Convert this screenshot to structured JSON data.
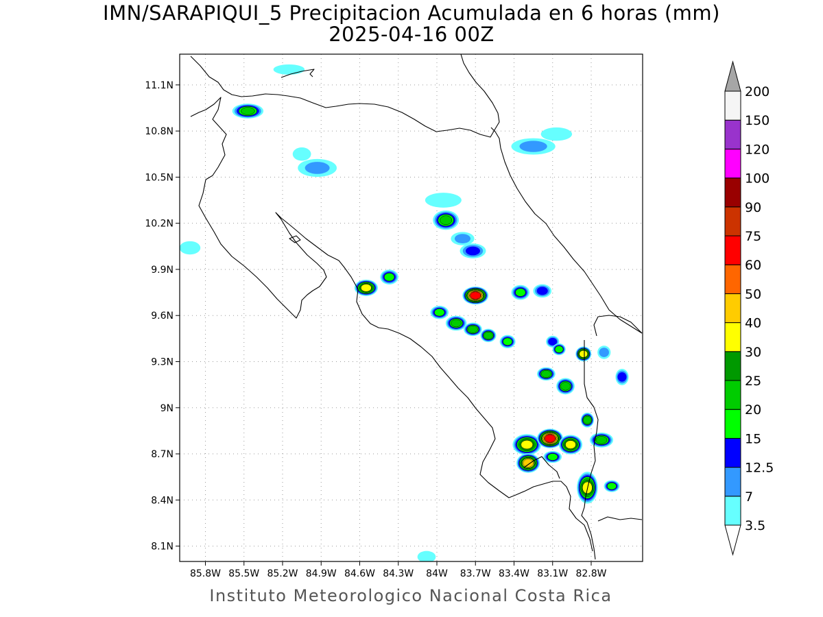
{
  "title": {
    "line1": "IMN/SARAPIQUI_5 Precipitacion Acumulada en 6 horas (mm)",
    "line2": "2025-04-16 00Z"
  },
  "footer": "Instituto Meteorologico Nacional Costa Rica",
  "map": {
    "lon_range": [
      -86.0,
      -82.4
    ],
    "lat_range": [
      8.0,
      11.3
    ],
    "lat_ticks": [
      {
        "value": 8.1,
        "label": "8.1N"
      },
      {
        "value": 8.4,
        "label": "8.4N"
      },
      {
        "value": 8.7,
        "label": "8.7N"
      },
      {
        "value": 9.0,
        "label": "9N"
      },
      {
        "value": 9.3,
        "label": "9.3N"
      },
      {
        "value": 9.6,
        "label": "9.6N"
      },
      {
        "value": 9.9,
        "label": "9.9N"
      },
      {
        "value": 10.2,
        "label": "10.2N"
      },
      {
        "value": 10.5,
        "label": "10.5N"
      },
      {
        "value": 10.8,
        "label": "10.8N"
      },
      {
        "value": 11.1,
        "label": "11.1N"
      }
    ],
    "lon_ticks": [
      {
        "value": -85.8,
        "label": "85.8W"
      },
      {
        "value": -85.5,
        "label": "85.5W"
      },
      {
        "value": -85.2,
        "label": "85.2W"
      },
      {
        "value": -84.9,
        "label": "84.9W"
      },
      {
        "value": -84.6,
        "label": "84.6W"
      },
      {
        "value": -84.3,
        "label": "84.3W"
      },
      {
        "value": -84.0,
        "label": "84W"
      },
      {
        "value": -83.7,
        "label": "83.7W"
      },
      {
        "value": -83.4,
        "label": "83.4W"
      },
      {
        "value": -83.1,
        "label": "83.1W"
      },
      {
        "value": -82.8,
        "label": "82.8W"
      }
    ],
    "grid": true,
    "coast_color": "#000000"
  },
  "legend": {
    "levels": [
      {
        "label": "3.5",
        "color": "#66ffff"
      },
      {
        "label": "7",
        "color": "#3399ff"
      },
      {
        "label": "12.5",
        "color": "#0000ff"
      },
      {
        "label": "15",
        "color": "#00ff00"
      },
      {
        "label": "20",
        "color": "#00cc00"
      },
      {
        "label": "25",
        "color": "#009900"
      },
      {
        "label": "30",
        "color": "#ffff00"
      },
      {
        "label": "40",
        "color": "#ffcc00"
      },
      {
        "label": "50",
        "color": "#ff6600"
      },
      {
        "label": "60",
        "color": "#ff0000"
      },
      {
        "label": "75",
        "color": "#cc3300"
      },
      {
        "label": "90",
        "color": "#990000"
      },
      {
        "label": "100",
        "color": "#ff00ff"
      },
      {
        "label": "120",
        "color": "#9933cc"
      },
      {
        "label": "150",
        "color": "#f5f5f5"
      },
      {
        "label": "200",
        "color": "#a6a6a6"
      }
    ],
    "under_color": "#ffffff",
    "over_color": "#a6a6a6"
  },
  "precip_cells": [
    {
      "lon": -85.47,
      "lat": 10.93,
      "rx": 0.1,
      "ry": 0.035,
      "value": 22
    },
    {
      "lon": -84.93,
      "lat": 10.56,
      "rx": 0.13,
      "ry": 0.045,
      "value": 9
    },
    {
      "lon": -85.05,
      "lat": 10.65,
      "rx": 0.05,
      "ry": 0.03,
      "value": 5
    },
    {
      "lon": -85.92,
      "lat": 10.04,
      "rx": 0.06,
      "ry": 0.03,
      "value": 6
    },
    {
      "lon": -84.55,
      "lat": 9.78,
      "rx": 0.07,
      "ry": 0.04,
      "value": 33
    },
    {
      "lon": -84.37,
      "lat": 9.85,
      "rx": 0.05,
      "ry": 0.035,
      "value": 16
    },
    {
      "lon": -83.98,
      "lat": 9.62,
      "rx": 0.05,
      "ry": 0.03,
      "value": 18
    },
    {
      "lon": -83.85,
      "lat": 9.55,
      "rx": 0.06,
      "ry": 0.035,
      "value": 24
    },
    {
      "lon": -83.72,
      "lat": 9.51,
      "rx": 0.05,
      "ry": 0.03,
      "value": 22
    },
    {
      "lon": -83.6,
      "lat": 9.47,
      "rx": 0.04,
      "ry": 0.03,
      "value": 20
    },
    {
      "lon": -83.45,
      "lat": 9.43,
      "rx": 0.04,
      "ry": 0.03,
      "value": 18
    },
    {
      "lon": -83.7,
      "lat": 9.73,
      "rx": 0.08,
      "ry": 0.045,
      "value": 62
    },
    {
      "lon": -83.35,
      "lat": 9.75,
      "rx": 0.05,
      "ry": 0.035,
      "value": 17
    },
    {
      "lon": -83.18,
      "lat": 9.76,
      "rx": 0.05,
      "ry": 0.03,
      "value": 14
    },
    {
      "lon": -83.93,
      "lat": 10.22,
      "rx": 0.08,
      "ry": 0.05,
      "value": 20
    },
    {
      "lon": -83.95,
      "lat": 10.35,
      "rx": 0.12,
      "ry": 0.035,
      "value": 5
    },
    {
      "lon": -83.72,
      "lat": 10.02,
      "rx": 0.08,
      "ry": 0.035,
      "value": 13
    },
    {
      "lon": -83.8,
      "lat": 10.1,
      "rx": 0.07,
      "ry": 0.03,
      "value": 8
    },
    {
      "lon": -83.25,
      "lat": 10.7,
      "rx": 0.15,
      "ry": 0.04,
      "value": 8
    },
    {
      "lon": -83.07,
      "lat": 10.78,
      "rx": 0.1,
      "ry": 0.03,
      "value": 6
    },
    {
      "lon": -83.15,
      "lat": 9.22,
      "rx": 0.05,
      "ry": 0.03,
      "value": 20
    },
    {
      "lon": -83.0,
      "lat": 9.14,
      "rx": 0.05,
      "ry": 0.04,
      "value": 21
    },
    {
      "lon": -83.1,
      "lat": 9.43,
      "rx": 0.03,
      "ry": 0.025,
      "value": 14
    },
    {
      "lon": -83.05,
      "lat": 9.38,
      "rx": 0.03,
      "ry": 0.025,
      "value": 16
    },
    {
      "lon": -82.86,
      "lat": 9.35,
      "rx": 0.04,
      "ry": 0.035,
      "value": 32
    },
    {
      "lon": -82.7,
      "lat": 9.36,
      "rx": 0.03,
      "ry": 0.03,
      "value": 12
    },
    {
      "lon": -82.56,
      "lat": 9.2,
      "rx": 0.03,
      "ry": 0.04,
      "value": 14
    },
    {
      "lon": -82.83,
      "lat": 8.92,
      "rx": 0.03,
      "ry": 0.035,
      "value": 22
    },
    {
      "lon": -83.3,
      "lat": 8.76,
      "rx": 0.09,
      "ry": 0.055,
      "value": 30
    },
    {
      "lon": -83.12,
      "lat": 8.8,
      "rx": 0.08,
      "ry": 0.05,
      "value": 65
    },
    {
      "lon": -82.96,
      "lat": 8.76,
      "rx": 0.07,
      "ry": 0.05,
      "value": 32
    },
    {
      "lon": -82.72,
      "lat": 8.79,
      "rx": 0.07,
      "ry": 0.035,
      "value": 22
    },
    {
      "lon": -83.29,
      "lat": 8.64,
      "rx": 0.07,
      "ry": 0.05,
      "value": 42
    },
    {
      "lon": -83.1,
      "lat": 8.68,
      "rx": 0.05,
      "ry": 0.025,
      "value": 16
    },
    {
      "lon": -82.83,
      "lat": 8.48,
      "rx": 0.06,
      "ry": 0.09,
      "value": 38
    },
    {
      "lon": -82.64,
      "lat": 8.49,
      "rx": 0.04,
      "ry": 0.025,
      "value": 18
    },
    {
      "lon": -84.08,
      "lat": 8.03,
      "rx": 0.05,
      "ry": 0.025,
      "value": 6
    },
    {
      "lon": -85.15,
      "lat": 11.2,
      "rx": 0.1,
      "ry": 0.02,
      "value": 4
    }
  ]
}
